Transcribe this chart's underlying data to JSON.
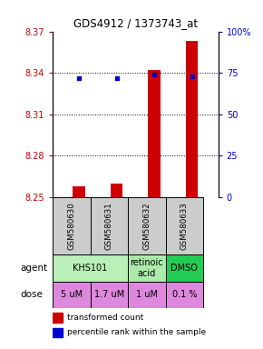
{
  "title": "GDS4912 / 1373743_at",
  "samples": [
    "GSM580630",
    "GSM580631",
    "GSM580632",
    "GSM580633"
  ],
  "bar_values": [
    8.258,
    8.26,
    8.342,
    8.363
  ],
  "bar_bottom": 8.25,
  "blue_values": [
    72,
    72,
    74,
    73
  ],
  "ylim_left": [
    8.25,
    8.37
  ],
  "ylim_right": [
    0,
    100
  ],
  "yticks_left": [
    8.25,
    8.28,
    8.31,
    8.34,
    8.37
  ],
  "ytick_labels_left": [
    "8.25",
    "8.28",
    "8.31",
    "8.34",
    "8.37"
  ],
  "yticks_right": [
    0,
    25,
    50,
    75,
    100
  ],
  "ytick_labels_right": [
    "0",
    "25",
    "50",
    "75",
    "100%"
  ],
  "hlines": [
    8.28,
    8.31,
    8.34
  ],
  "agents": [
    [
      "KHS101",
      2
    ],
    [
      "retinoic\nacid",
      1
    ],
    [
      "DMSO",
      1
    ]
  ],
  "agent_colors": [
    "#b8f0b8",
    "#b8f0b8",
    "#22cc55"
  ],
  "doses": [
    "5 uM",
    "1.7 uM",
    "1 uM",
    "0.1 %"
  ],
  "dose_color": "#dd88dd",
  "bar_color": "#cc0000",
  "blue_color": "#0000cc",
  "sample_box_color": "#cccccc",
  "legend_bar_label": "transformed count",
  "legend_blue_label": "percentile rank within the sample",
  "left_label_color": "#cc0000",
  "right_label_color": "#0000cc",
  "retinoic_color": "#aaeaaa"
}
